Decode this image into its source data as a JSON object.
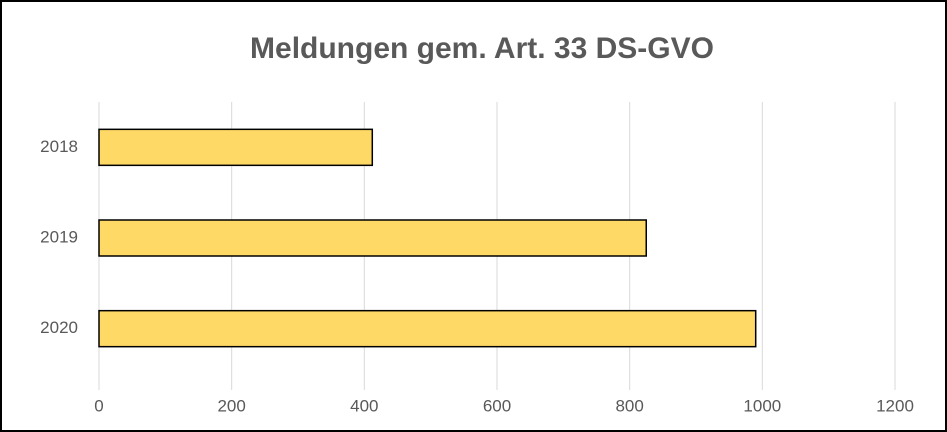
{
  "chart_data": {
    "type": "bar",
    "orientation": "horizontal",
    "title": "Meldungen gem. Art. 33 DS-GVO",
    "categories": [
      "2018",
      "2019",
      "2020"
    ],
    "values": [
      412,
      825,
      990
    ],
    "color": "#ffd966",
    "xlim": [
      0,
      1200
    ],
    "xticks": [
      0,
      200,
      400,
      600,
      800,
      1000,
      1200
    ],
    "grid": true
  }
}
